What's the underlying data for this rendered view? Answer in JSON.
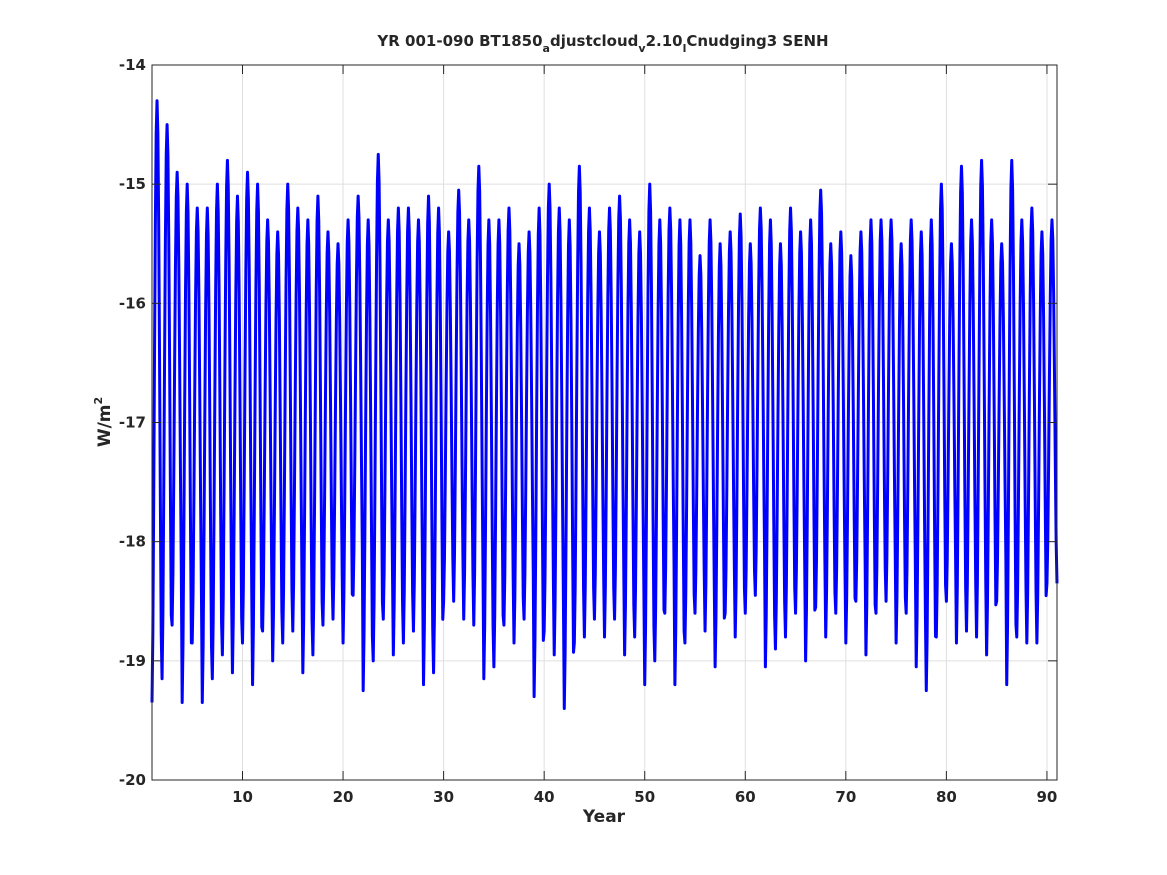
{
  "chart_data": {
    "type": "line",
    "title": {
      "main_1": "YR 001-090 BT1850",
      "sub_1": "a",
      "main_2": "djustcloud",
      "sub_2": "v",
      "main_3": "2.10",
      "sub_3": "l",
      "main_4": "Cnudging3 SENH"
    },
    "xlabel": "Year",
    "ylabel": {
      "base": "W/m",
      "sup": "2"
    },
    "xlim": [
      1,
      91
    ],
    "ylim": [
      -20,
      -14
    ],
    "xticks": [
      10,
      20,
      30,
      40,
      50,
      60,
      70,
      80,
      90
    ],
    "yticks": [
      -14,
      -15,
      -16,
      -17,
      -18,
      -19,
      -20
    ],
    "grid": true,
    "line_color": "#0000ff",
    "series": [
      {
        "annual_cycle": {
          "samples_per_year": 12,
          "cycle_days": [
            0,
            1,
            2,
            3,
            4,
            5,
            6,
            7,
            8,
            9,
            10,
            11
          ],
          "annual_max": [
            -14.3,
            -14.5,
            -14.9,
            -15.0,
            -15.2,
            -15.2,
            -15.0,
            -14.8,
            -15.1,
            -14.9,
            -15.0,
            -15.3,
            -15.4,
            -15.0,
            -15.2,
            -15.3,
            -15.1,
            -15.4,
            -15.5,
            -15.3,
            -15.1,
            -15.3,
            -14.75,
            -15.3,
            -15.2,
            -15.2,
            -15.3,
            -15.1,
            -15.2,
            -15.4,
            -15.05,
            -15.3,
            -14.85,
            -15.3,
            -15.3,
            -15.2,
            -15.5,
            -15.4,
            -15.2,
            -15.0,
            -15.2,
            -15.3,
            -14.85,
            -15.2,
            -15.4,
            -15.2,
            -15.1,
            -15.3,
            -15.4,
            -15.0,
            -15.3,
            -15.2,
            -15.3,
            -15.3,
            -15.6,
            -15.3,
            -15.5,
            -15.4,
            -15.25,
            -15.5,
            -15.2,
            -15.3,
            -15.5,
            -15.2,
            -15.4,
            -15.3,
            -15.05,
            -15.5,
            -15.4,
            -15.6,
            -15.4,
            -15.3,
            -15.3,
            -15.3,
            -15.5,
            -15.3,
            -15.4,
            -15.3,
            -15.0,
            -15.5,
            -14.85,
            -15.3,
            -14.8,
            -15.3,
            -15.5,
            -14.8,
            -15.3,
            -15.2,
            -15.4,
            -15.3
          ],
          "annual_min": [
            -19.35,
            -19.15,
            -18.7,
            -19.35,
            -18.85,
            -19.35,
            -19.15,
            -18.95,
            -19.1,
            -18.85,
            -19.2,
            -18.75,
            -19.0,
            -18.85,
            -18.75,
            -19.1,
            -18.95,
            -18.7,
            -18.65,
            -18.85,
            -18.45,
            -19.25,
            -19.0,
            -18.65,
            -18.95,
            -18.85,
            -18.75,
            -19.2,
            -19.1,
            -18.5,
            -18.5,
            -18.65,
            -18.7,
            -19.15,
            -19.05,
            -18.7,
            -18.85,
            -18.65,
            -19.3,
            -18.75,
            -18.95,
            -19.4,
            -18.85,
            -18.8,
            -18.65,
            -18.8,
            -18.65,
            -18.95,
            -18.8,
            -19.2,
            -19.0,
            -18.6,
            -19.2,
            -18.85,
            -18.6,
            -18.75,
            -19.05,
            -18.6,
            -18.8,
            -18.6,
            -18.45,
            -19.05,
            -18.9,
            -18.8,
            -18.6,
            -19.0,
            -18.55,
            -18.8,
            -18.6,
            -18.85,
            -18.5,
            -18.95,
            -18.6,
            -18.5,
            -18.85,
            -18.6,
            -19.05,
            -19.25,
            -18.8,
            -18.5,
            -18.85,
            -18.75,
            -18.8,
            -18.95,
            -18.5,
            -19.2,
            -18.8,
            -18.85,
            -18.85,
            -18.35
          ]
        }
      }
    ]
  }
}
